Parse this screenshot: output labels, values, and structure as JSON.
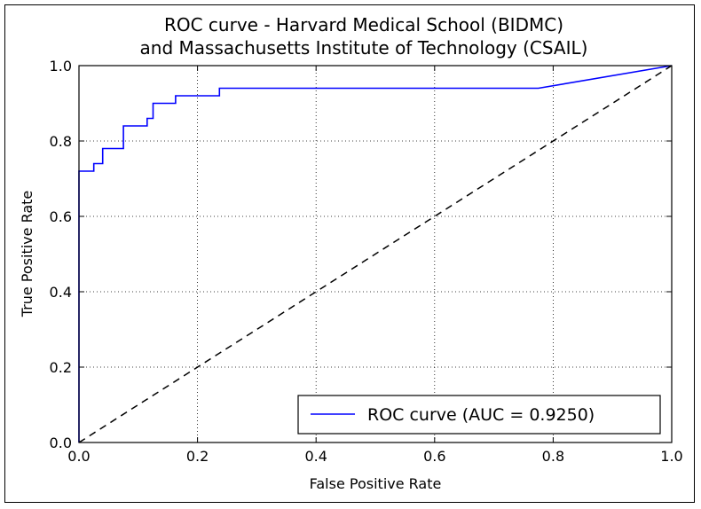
{
  "chart_data": {
    "type": "line",
    "title_line1": "ROC curve - Harvard Medical School (BIDMC)",
    "title_line2": "and Massachusetts Institute of Technology (CSAIL)",
    "xlabel": "False Positive Rate",
    "ylabel": "True Positive Rate",
    "xlim": [
      0.0,
      1.0
    ],
    "ylim": [
      0.0,
      1.0
    ],
    "xticks": [
      "0.0",
      "0.2",
      "0.4",
      "0.6",
      "0.8",
      "1.0"
    ],
    "yticks": [
      "0.0",
      "0.2",
      "0.4",
      "0.6",
      "0.8",
      "1.0"
    ],
    "grid": true,
    "legend_position": "lower-right",
    "series": [
      {
        "name": "ROC curve (AUC = 0.9250)",
        "color": "#0000ff",
        "style": "solid",
        "x": [
          0.0,
          0.0,
          0.025,
          0.025,
          0.04,
          0.04,
          0.075,
          0.075,
          0.115,
          0.115,
          0.125,
          0.125,
          0.163,
          0.163,
          0.237,
          0.237,
          0.775,
          1.0
        ],
        "y": [
          0.0,
          0.72,
          0.72,
          0.74,
          0.74,
          0.78,
          0.78,
          0.84,
          0.84,
          0.86,
          0.86,
          0.9,
          0.9,
          0.92,
          0.92,
          0.94,
          0.94,
          1.0
        ]
      },
      {
        "name": "",
        "color": "#000000",
        "style": "dashed",
        "x": [
          0.0,
          1.0
        ],
        "y": [
          0.0,
          1.0
        ]
      }
    ]
  }
}
